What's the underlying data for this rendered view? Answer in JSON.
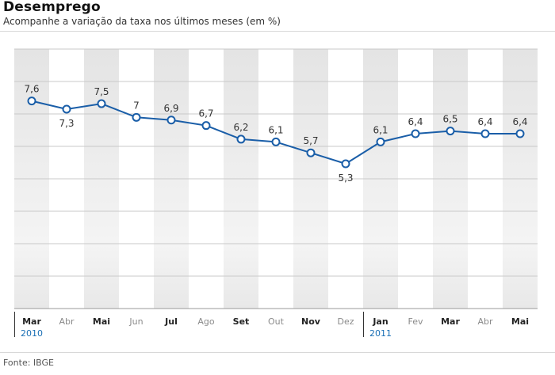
{
  "header": {
    "title": "Desemprego",
    "subtitle": "Acompanhe a variação da taxa nos últimos meses (em %)"
  },
  "footer": {
    "source": "Fonte: IBGE"
  },
  "colors": {
    "line": "#1a5ea8",
    "marker_fill": "#ffffff",
    "year_label": "#1a6fb5",
    "band_dark": "#e6e6e6",
    "band_light": "#ffffff",
    "month_bold": "#222222",
    "month_muted": "#8a8a8a"
  },
  "chart_data": {
    "type": "line",
    "categories": [
      "Mar",
      "Abr",
      "Mai",
      "Jun",
      "Jul",
      "Ago",
      "Set",
      "Out",
      "Nov",
      "Dez",
      "Jan",
      "Fev",
      "Mar",
      "Abr",
      "Mai"
    ],
    "category_emphasis": [
      true,
      false,
      true,
      false,
      true,
      false,
      true,
      false,
      true,
      false,
      true,
      false,
      true,
      false,
      true
    ],
    "years": [
      {
        "label": "2010",
        "start_index": 0
      },
      {
        "label": "2011",
        "start_index": 10
      }
    ],
    "series": [
      {
        "values": [
          7.6,
          7.3,
          7.5,
          7.0,
          6.9,
          6.7,
          6.2,
          6.1,
          5.7,
          5.3,
          6.1,
          6.4,
          6.5,
          6.4,
          6.4
        ],
        "labels": [
          "7,6",
          "7,3",
          "7,5",
          "7",
          "6,9",
          "6,7",
          "6,2",
          "6,1",
          "5,7",
          "5,3",
          "6,1",
          "6,4",
          "6,5",
          "6,4",
          "6,4"
        ],
        "label_position": [
          "above",
          "below",
          "above",
          "above",
          "above",
          "above",
          "above",
          "above",
          "above",
          "below",
          "above",
          "above",
          "above",
          "above",
          "above"
        ]
      }
    ],
    "ylim": [
      0,
      9.5
    ],
    "grid": true,
    "legend": "none",
    "xlabel": "",
    "ylabel": ""
  }
}
